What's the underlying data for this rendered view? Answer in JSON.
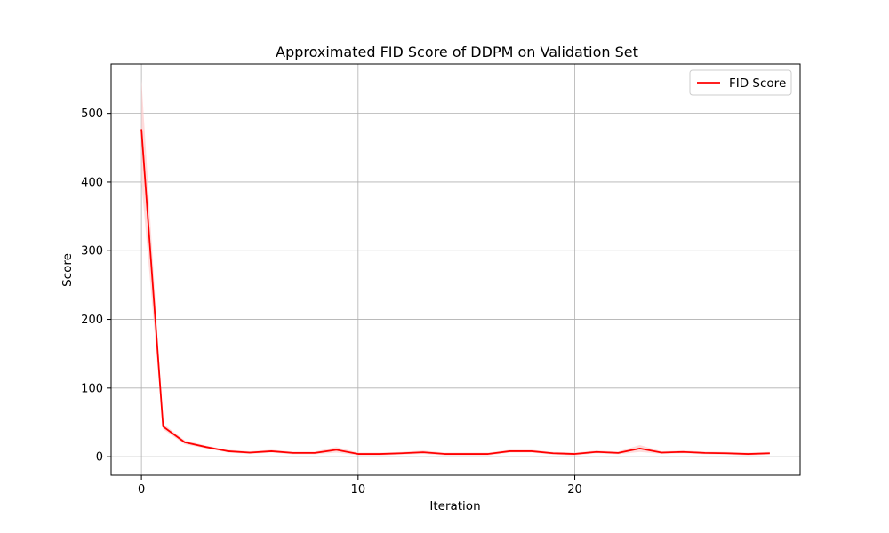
{
  "chart_data": {
    "type": "line",
    "title": "Approximated FID Score of DDPM on Validation Set",
    "xlabel": "Iteration",
    "ylabel": "Score",
    "xlim": [
      -1.4,
      30.4
    ],
    "ylim": [
      -27,
      572
    ],
    "xticks": [
      0,
      10,
      20
    ],
    "yticks": [
      0,
      100,
      200,
      300,
      400,
      500
    ],
    "grid": true,
    "legend_position": "top-right",
    "colors": {
      "line": "#ff0000",
      "band": "#ffcccc",
      "grid": "#b0b0b0",
      "axis": "#000000"
    },
    "series": [
      {
        "name": "FID Score",
        "x": [
          0,
          1,
          2,
          3,
          4,
          5,
          6,
          7,
          8,
          9,
          10,
          11,
          12,
          13,
          14,
          15,
          16,
          17,
          18,
          19,
          20,
          21,
          22,
          23,
          24,
          25,
          26,
          27,
          28,
          29
        ],
        "values": [
          477,
          44,
          21,
          14,
          8,
          6,
          8,
          5.5,
          5.5,
          10,
          4,
          4,
          5,
          6.5,
          4,
          4,
          4,
          8,
          8,
          5,
          4,
          7,
          5.5,
          12,
          6,
          7,
          5.5,
          5,
          4,
          5
        ],
        "upper": [
          550,
          48,
          24,
          16,
          10,
          8,
          10,
          7.5,
          7.5,
          14,
          6,
          6,
          7,
          9,
          6,
          6,
          6,
          10,
          10,
          7,
          6,
          9,
          7.5,
          17,
          8,
          9,
          7.5,
          7,
          6,
          7
        ],
        "lower": [
          400,
          40,
          18,
          12,
          6,
          4,
          6,
          3.5,
          3.5,
          6,
          2,
          2,
          3,
          4,
          2,
          2,
          2,
          6,
          6,
          3,
          2,
          5,
          3.5,
          7,
          4,
          5,
          3.5,
          3,
          2,
          3
        ]
      }
    ]
  }
}
